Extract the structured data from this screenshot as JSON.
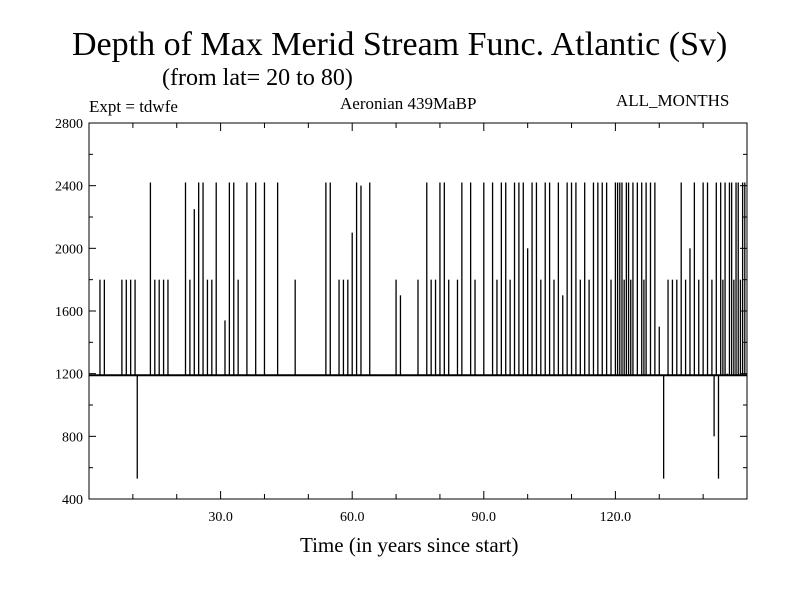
{
  "header": {
    "title": "Depth of Max Merid Stream Func. Atlantic (Sv)",
    "subtitle": "(from lat= 20 to 80)",
    "left_label": "Expt = tdwfe",
    "center_label": "Aeronian 439MaBP",
    "right_label": "ALL_MONTHS"
  },
  "chart_data": {
    "type": "line",
    "title": "Depth of Max Merid Stream Func. Atlantic (Sv)",
    "subtitle": "(from lat= 20 to 80)",
    "xlabel": "Time (in years since start)",
    "ylabel": "",
    "xlim": [
      0,
      150
    ],
    "ylim": [
      400,
      2800
    ],
    "x_ticks": [
      30,
      60,
      90,
      120
    ],
    "x_tick_labels": [
      "30.0",
      "60.0",
      "90.0",
      "120.0"
    ],
    "x_minor_ticks": [
      10,
      20,
      40,
      50,
      70,
      80,
      100,
      110,
      130,
      140
    ],
    "y_ticks": [
      400,
      800,
      1200,
      1600,
      2000,
      2400,
      2800
    ],
    "y_tick_labels": [
      "400",
      "800",
      "1200",
      "1600",
      "2000",
      "2400",
      "2800"
    ],
    "grid": false,
    "baseline": 1190,
    "series": [
      {
        "color": "#000000",
        "spikes": [
          [
            2.5,
            1800
          ],
          [
            3.5,
            1800
          ],
          [
            7.5,
            1800
          ],
          [
            8.5,
            1800
          ],
          [
            9.5,
            1800
          ],
          [
            10.5,
            1800
          ],
          [
            11,
            530
          ],
          [
            14,
            2420
          ],
          [
            15,
            1800
          ],
          [
            16,
            1800
          ],
          [
            17,
            1800
          ],
          [
            18,
            1800
          ],
          [
            22,
            2420
          ],
          [
            23,
            1800
          ],
          [
            24,
            2250
          ],
          [
            25,
            2420
          ],
          [
            26,
            2420
          ],
          [
            27,
            1800
          ],
          [
            28,
            1800
          ],
          [
            29,
            2420
          ],
          [
            31,
            1540
          ],
          [
            32,
            2420
          ],
          [
            33,
            2420
          ],
          [
            34,
            1800
          ],
          [
            36,
            2420
          ],
          [
            38,
            2420
          ],
          [
            40,
            2420
          ],
          [
            43,
            2420
          ],
          [
            47,
            1800
          ],
          [
            54,
            2420
          ],
          [
            55,
            2420
          ],
          [
            57,
            1800
          ],
          [
            58,
            1800
          ],
          [
            59,
            1800
          ],
          [
            60,
            2100
          ],
          [
            61,
            2420
          ],
          [
            62,
            2400
          ],
          [
            64,
            2420
          ],
          [
            70,
            1800
          ],
          [
            71,
            1700
          ],
          [
            75,
            1800
          ],
          [
            77,
            2420
          ],
          [
            78,
            1800
          ],
          [
            79,
            1800
          ],
          [
            80,
            2420
          ],
          [
            81,
            2420
          ],
          [
            82,
            1800
          ],
          [
            84,
            1800
          ],
          [
            85,
            2420
          ],
          [
            87,
            2420
          ],
          [
            88,
            1800
          ],
          [
            90,
            2420
          ],
          [
            92,
            2420
          ],
          [
            93,
            1800
          ],
          [
            94,
            2420
          ],
          [
            95,
            2420
          ],
          [
            96,
            1800
          ],
          [
            97,
            2420
          ],
          [
            98,
            2420
          ],
          [
            99,
            2420
          ],
          [
            100,
            2000
          ],
          [
            101,
            2420
          ],
          [
            102,
            2420
          ],
          [
            103,
            1800
          ],
          [
            104,
            2420
          ],
          [
            105,
            2420
          ],
          [
            106,
            1800
          ],
          [
            107,
            2420
          ],
          [
            108,
            1700
          ],
          [
            109,
            2420
          ],
          [
            110,
            2420
          ],
          [
            111,
            2420
          ],
          [
            112,
            1800
          ],
          [
            113,
            2420
          ],
          [
            114,
            1800
          ],
          [
            115,
            2420
          ],
          [
            116,
            2420
          ],
          [
            117,
            2420
          ],
          [
            118,
            2420
          ],
          [
            119,
            1800
          ],
          [
            120,
            2420
          ],
          [
            120.5,
            2420
          ],
          [
            121,
            2420
          ],
          [
            121.5,
            2420
          ],
          [
            122,
            1800
          ],
          [
            122.5,
            2420
          ],
          [
            123,
            2420
          ],
          [
            123.5,
            1800
          ],
          [
            124,
            2420
          ],
          [
            125,
            2420
          ],
          [
            126,
            2420
          ],
          [
            126.5,
            1800
          ],
          [
            127,
            2420
          ],
          [
            128,
            2420
          ],
          [
            129,
            2420
          ],
          [
            130,
            1500
          ],
          [
            131,
            530
          ],
          [
            132,
            1800
          ],
          [
            133,
            1800
          ],
          [
            134,
            1800
          ],
          [
            135,
            2420
          ],
          [
            136,
            1800
          ],
          [
            137,
            2000
          ],
          [
            138,
            2420
          ],
          [
            139,
            1800
          ],
          [
            140,
            2420
          ],
          [
            141,
            2420
          ],
          [
            142,
            1800
          ],
          [
            142.5,
            800
          ],
          [
            143,
            2420
          ],
          [
            143.5,
            530
          ],
          [
            144,
            2420
          ],
          [
            144.5,
            1800
          ],
          [
            145,
            2420
          ],
          [
            145.5,
            1200
          ],
          [
            146,
            2420
          ],
          [
            146.5,
            2420
          ],
          [
            147,
            1800
          ],
          [
            147.5,
            2420
          ],
          [
            148,
            2420
          ],
          [
            148.5,
            1800
          ],
          [
            149,
            2420
          ],
          [
            149.5,
            2420
          ]
        ]
      }
    ]
  }
}
